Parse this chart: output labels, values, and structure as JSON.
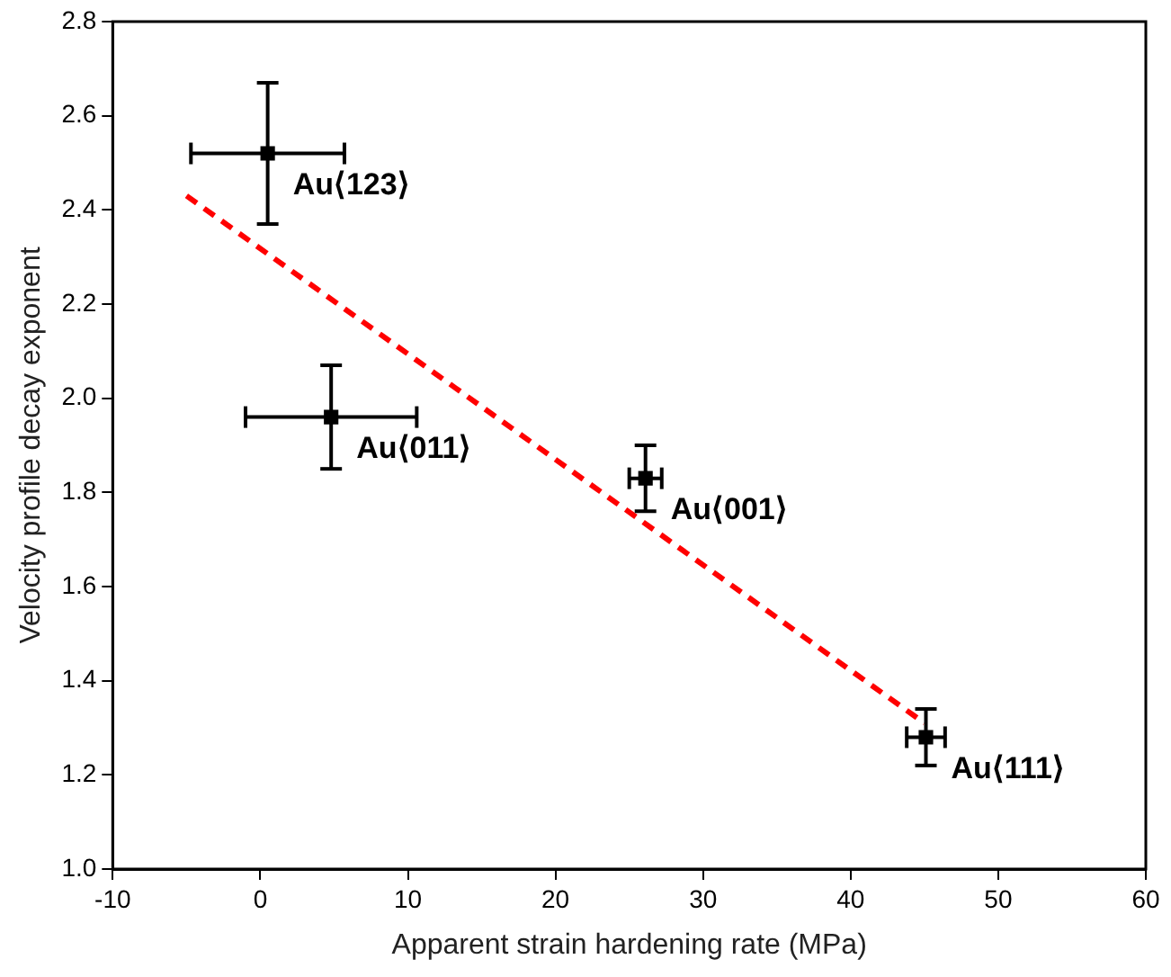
{
  "chart_data": {
    "type": "scatter",
    "xlabel": "Apparent strain hardening rate (MPa)",
    "ylabel": "Velocity profile decay exponent",
    "xlim": [
      -10,
      60
    ],
    "xticks": [
      -10,
      0,
      10,
      20,
      30,
      40,
      50,
      60
    ],
    "ylim": [
      1,
      2.8
    ],
    "yticks": [
      {
        "value": 1,
        "label": "1.0"
      },
      1.2,
      1.4,
      1.6,
      1.8,
      {
        "value": 2,
        "label": "2.0"
      },
      2.2,
      2.4,
      2.6,
      2.8
    ],
    "grid": false,
    "legend": false,
    "marker": "square",
    "series": [
      {
        "color": "#000000",
        "x": [
          0.5,
          4.8,
          26.1,
          45.1
        ],
        "values": [
          2.52,
          1.96,
          1.83,
          1.28
        ],
        "errors": [
          0.15,
          [
            0.11,
            0.11
          ],
          0.07,
          0.06
        ],
        "xerrors": [
          5.2,
          5.8,
          1.1,
          1.3
        ]
      },
      {
        "type": "line",
        "color": "#ff0000",
        "line_style": "dashed",
        "marker": "none",
        "x": [
          -5,
          45
        ],
        "values": [
          2.43,
          1.31
        ]
      }
    ],
    "annotations": [
      {
        "text": "Au⟨123⟩",
        "x": 0.5,
        "y": 2.52
      },
      {
        "text": "Au⟨011⟩",
        "x": 4.8,
        "y": 1.96
      },
      {
        "text": "Au⟨001⟩",
        "x": 26.1,
        "y": 1.83
      },
      {
        "text": "Au⟨111⟩",
        "x": 45.1,
        "y": 1.28
      }
    ]
  }
}
